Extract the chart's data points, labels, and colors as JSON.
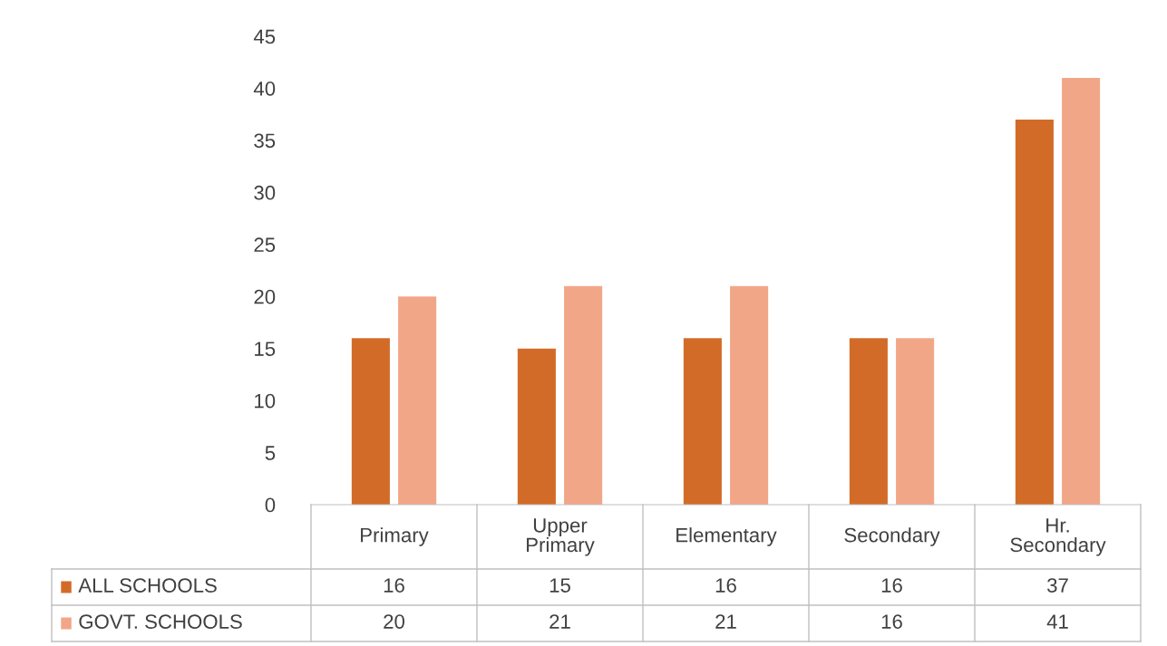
{
  "chart_data": {
    "type": "bar",
    "categories": [
      "Primary",
      "Upper\nPrimary",
      "Elementary",
      "Secondary",
      "Hr.\nSecondary"
    ],
    "series": [
      {
        "name": "ALL SCHOOLS",
        "color": "#d36b28",
        "values": [
          16,
          15,
          16,
          16,
          37
        ]
      },
      {
        "name": "GOVT. SCHOOLS",
        "color": "#f2a688",
        "values": [
          20,
          21,
          21,
          16,
          41
        ]
      }
    ],
    "ylim": [
      0,
      45
    ],
    "yticks": [
      0,
      5,
      10,
      15,
      20,
      25,
      30,
      35,
      40,
      45
    ],
    "grid": false,
    "legend": "bottom",
    "data_labels": true
  }
}
